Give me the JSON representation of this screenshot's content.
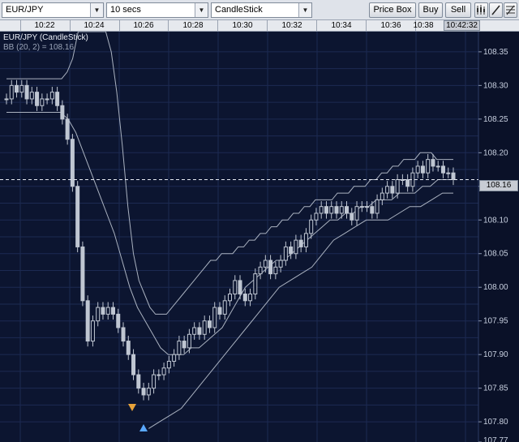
{
  "toolbar": {
    "symbol": "EUR/JPY",
    "interval": "10 secs",
    "chart_style": "CandleStick",
    "price_box_label": "Price Box",
    "buy_label": "Buy",
    "sell_label": "Sell"
  },
  "chart": {
    "title": "EUR/JPY (CandleStick)",
    "indicator": "BB (20, 2) = 108.16",
    "current_price": "108.16",
    "current_time": "10:42:32",
    "time_labels": [
      "10:22",
      "10:24",
      "10:26",
      "10:28",
      "10:30",
      "10:32",
      "10:34",
      "10:36",
      "10:38"
    ],
    "price_labels": [
      "108.35",
      "108.30",
      "108.25",
      "108.20",
      "108.15",
      "108.10",
      "108.05",
      "108.00",
      "107.95",
      "107.90",
      "107.85",
      "107.80",
      "107.77"
    ],
    "colors": {
      "background": "#0c1530",
      "grid": "#1c2a52",
      "candle": "#bfc6d2",
      "bollinger": "#aab2c0"
    }
  },
  "chart_data": {
    "type": "candlestick",
    "symbol": "EUR/JPY",
    "interval": "10 secs",
    "indicator": "BB (20, 2)",
    "ylim": [
      107.77,
      108.38
    ],
    "x_ticks": [
      "10:22",
      "10:24",
      "10:26",
      "10:28",
      "10:30",
      "10:32",
      "10:34",
      "10:36",
      "10:38"
    ],
    "last_price": 108.16,
    "last_time": "10:42:32",
    "close": [
      108.28,
      108.3,
      108.29,
      108.3,
      108.28,
      108.29,
      108.27,
      108.28,
      108.28,
      108.29,
      108.27,
      108.25,
      108.22,
      108.15,
      108.06,
      107.98,
      107.92,
      107.95,
      107.97,
      107.96,
      107.97,
      107.96,
      107.94,
      107.92,
      107.9,
      107.87,
      107.85,
      107.84,
      107.85,
      107.87,
      107.87,
      107.88,
      107.89,
      107.9,
      107.92,
      107.91,
      107.93,
      107.94,
      107.93,
      107.95,
      107.94,
      107.97,
      107.96,
      107.98,
      107.99,
      108.01,
      107.99,
      107.98,
      107.99,
      108.02,
      108.03,
      108.04,
      108.02,
      108.03,
      108.04,
      108.06,
      108.05,
      108.07,
      108.06,
      108.08,
      108.1,
      108.11,
      108.12,
      108.11,
      108.12,
      108.11,
      108.12,
      108.11,
      108.1,
      108.12,
      108.12,
      108.12,
      108.11,
      108.13,
      108.14,
      108.15,
      108.14,
      108.16,
      108.16,
      108.15,
      108.17,
      108.18,
      108.17,
      108.19,
      108.18,
      108.18,
      108.17,
      108.17,
      108.16
    ],
    "bollinger_upper": [
      108.31,
      108.31,
      108.31,
      108.31,
      108.31,
      108.31,
      108.31,
      108.31,
      108.31,
      108.31,
      108.31,
      108.32,
      108.34,
      108.38,
      108.38,
      108.38,
      108.38,
      108.38,
      108.38,
      108.35,
      108.29,
      108.21,
      108.12,
      108.05,
      108.01,
      107.99,
      107.97,
      107.96,
      107.96,
      107.96,
      107.97,
      107.98,
      107.99,
      108.0,
      108.01,
      108.02,
      108.03,
      108.04,
      108.04,
      108.05,
      108.05,
      108.05,
      108.06,
      108.06,
      108.07,
      108.07,
      108.08,
      108.08,
      108.09,
      108.09,
      108.1,
      108.1,
      108.11,
      108.11,
      108.12,
      108.12,
      108.13,
      108.13,
      108.13,
      108.13,
      108.14,
      108.14,
      108.14,
      108.15,
      108.15,
      108.15,
      108.16,
      108.16,
      108.17,
      108.17,
      108.18,
      108.18,
      108.19,
      108.19,
      108.19,
      108.2,
      108.2,
      108.2,
      108.19,
      108.19,
      108.19,
      108.19
    ],
    "bollinger_lower": [
      108.26,
      108.26,
      108.26,
      108.26,
      108.26,
      108.26,
      108.26,
      108.26,
      108.25,
      108.23,
      108.2,
      108.17,
      108.14,
      108.11,
      108.08,
      108.04,
      108.0,
      107.97,
      107.95,
      107.93,
      107.91,
      107.9,
      107.9,
      107.9,
      107.91,
      107.91,
      107.92,
      107.93,
      107.94,
      107.96,
      107.98,
      108.0,
      108.01,
      108.02,
      108.03,
      108.04,
      108.04,
      108.05,
      108.06,
      108.07,
      108.08,
      108.09,
      108.1,
      108.1,
      108.11,
      108.11,
      108.12,
      108.12,
      108.13,
      108.13,
      108.13,
      108.14,
      108.14,
      108.14,
      108.15,
      108.15,
      108.16,
      108.16,
      108.16
    ],
    "bollinger_lower_band": [
      107.79,
      107.8,
      107.81,
      107.82,
      107.84,
      107.86,
      107.88,
      107.9,
      107.92,
      107.94,
      107.96,
      107.98,
      108.0,
      108.01,
      108.02,
      108.03,
      108.05,
      108.07,
      108.08,
      108.09,
      108.1,
      108.1,
      108.1,
      108.11,
      108.12,
      108.12,
      108.13,
      108.14,
      108.14
    ]
  }
}
